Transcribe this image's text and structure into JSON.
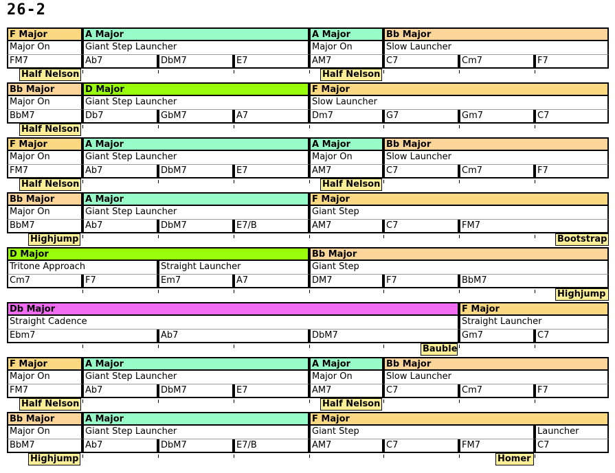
{
  "title": "26-2",
  "colors": {
    "F Major": "#fbd983",
    "A Major": "#98fcc9",
    "Bb Major": "#fcd59a",
    "D Major": "#99fc0a",
    "Db Major": "#f06cf0",
    "default": "#ffffff"
  },
  "rows": [
    {
      "keys": [
        {
          "label": "F Major",
          "color": "F Major"
        },
        {
          "label": "A Major",
          "color": "A Major"
        },
        {
          "label": "A Major",
          "color": "A Major"
        },
        {
          "label": "Bb Major",
          "color": "Bb Major"
        }
      ],
      "bricks": [
        {
          "label": "Major On"
        },
        {
          "label": "Giant Step Launcher"
        },
        {
          "label": "Major On"
        },
        {
          "label": "Slow Launcher"
        }
      ],
      "chords": [
        "FM7",
        "Ab7",
        "DbM7",
        "E7",
        "AM7",
        "C7",
        "Cm7",
        "F7"
      ],
      "joins": [
        "Half Nelson",
        "Half Nelson"
      ]
    },
    {
      "keys": [
        {
          "label": "Bb Major",
          "color": "Bb Major"
        },
        {
          "label": "D Major",
          "color": "D Major"
        },
        {
          "label": "F Major",
          "color": "F Major"
        }
      ],
      "bricks": [
        {
          "label": "Major On"
        },
        {
          "label": "Giant Step Launcher"
        },
        {
          "label": "Slow Launcher"
        }
      ],
      "chords": [
        "BbM7",
        "Db7",
        "GbM7",
        "A7",
        "Dm7",
        "G7",
        "Gm7",
        "C7"
      ],
      "joins": [
        "Half Nelson"
      ]
    },
    {
      "keys": [
        {
          "label": "F Major",
          "color": "F Major"
        },
        {
          "label": "A Major",
          "color": "A Major"
        },
        {
          "label": "A Major",
          "color": "A Major"
        },
        {
          "label": "Bb Major",
          "color": "Bb Major"
        }
      ],
      "bricks": [
        {
          "label": "Major On"
        },
        {
          "label": "Giant Step Launcher"
        },
        {
          "label": "Major On"
        },
        {
          "label": "Slow Launcher"
        }
      ],
      "chords": [
        "FM7",
        "Ab7",
        "DbM7",
        "E7",
        "AM7",
        "C7",
        "Cm7",
        "F7"
      ],
      "joins": [
        "Half Nelson",
        "Half Nelson"
      ]
    },
    {
      "keys": [
        {
          "label": "Bb Major",
          "color": "Bb Major"
        },
        {
          "label": "A Major",
          "color": "A Major"
        },
        {
          "label": "F Major",
          "color": "F Major"
        }
      ],
      "bricks": [
        {
          "label": "Major On"
        },
        {
          "label": "Giant Step Launcher"
        },
        {
          "label": "Giant Step"
        }
      ],
      "chords": [
        "BbM7",
        "Ab7",
        "DbM7",
        "E7/B",
        "AM7",
        "C7",
        "FM7"
      ],
      "joins": [
        "Highjump",
        "Bootstrap"
      ]
    },
    {
      "keys": [
        {
          "label": "D Major",
          "color": "D Major"
        },
        {
          "label": "Bb Major",
          "color": "Bb Major"
        }
      ],
      "bricks": [
        {
          "label": "Tritone Approach"
        },
        {
          "label": "Straight Launcher"
        },
        {
          "label": "Giant Step"
        }
      ],
      "chords": [
        "Cm7",
        "F7",
        "Em7",
        "A7",
        "DM7",
        "F7",
        "BbM7"
      ],
      "joins": [
        "Highjump"
      ]
    },
    {
      "keys": [
        {
          "label": "Db Major",
          "color": "Db Major"
        },
        {
          "label": "F Major",
          "color": "F Major"
        }
      ],
      "bricks": [
        {
          "label": "Straight Cadence"
        },
        {
          "label": "Straight Launcher"
        }
      ],
      "chords": [
        "Ebm7",
        "Ab7",
        "DbM7",
        "Gm7",
        "C7"
      ],
      "joins": [
        "Bauble"
      ]
    },
    {
      "keys": [
        {
          "label": "F Major",
          "color": "F Major"
        },
        {
          "label": "A Major",
          "color": "A Major"
        },
        {
          "label": "A Major",
          "color": "A Major"
        },
        {
          "label": "Bb Major",
          "color": "Bb Major"
        }
      ],
      "bricks": [
        {
          "label": "Major On"
        },
        {
          "label": "Giant Step Launcher"
        },
        {
          "label": "Major On"
        },
        {
          "label": "Slow Launcher"
        }
      ],
      "chords": [
        "FM7",
        "Ab7",
        "DbM7",
        "E7",
        "AM7",
        "C7",
        "Cm7",
        "F7"
      ],
      "joins": [
        "Half Nelson",
        "Half Nelson"
      ]
    },
    {
      "keys": [
        {
          "label": "Bb Major",
          "color": "Bb Major"
        },
        {
          "label": "A Major",
          "color": "A Major"
        },
        {
          "label": "F Major",
          "color": "F Major"
        }
      ],
      "bricks": [
        {
          "label": "Major On"
        },
        {
          "label": "Giant Step Launcher"
        },
        {
          "label": "Giant Step"
        },
        {
          "label": "Launcher"
        }
      ],
      "chords": [
        "BbM7",
        "Ab7",
        "DbM7",
        "E7/B",
        "AM7",
        "C7",
        "FM7",
        "C7"
      ],
      "joins": [
        "Highjump",
        "Homer"
      ]
    }
  ]
}
